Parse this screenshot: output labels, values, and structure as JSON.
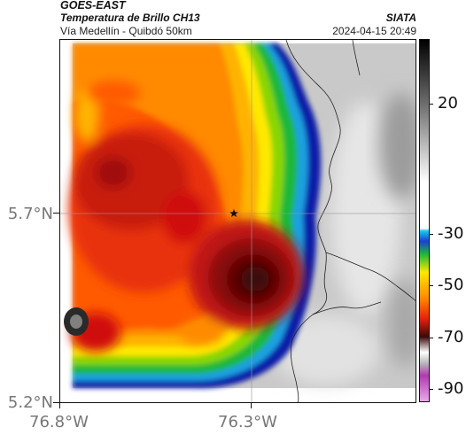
{
  "header": {
    "satellite": "GOES-EAST",
    "product": "Temperatura de Brillo CH13",
    "organization": "SIATA",
    "location": "Vía Medellín - Quibdó 50km",
    "timestamp": "2024-04-15 20:49"
  },
  "axes": {
    "latitude_labels": [
      "5.7°N",
      "5.2°N"
    ],
    "longitude_labels": [
      "76.8°W",
      "76.3°W"
    ]
  },
  "colorbar": {
    "tick_labels": [
      "20",
      "-30",
      "-50",
      "-70",
      "-90"
    ],
    "tick_values": [
      20,
      -30,
      -50,
      -70,
      -90
    ],
    "range": [
      -95,
      45
    ],
    "unit": ""
  },
  "map": {
    "marker_icon": "star-icon",
    "colors": {
      "coldest": "#3a0808",
      "red": "#d4160c",
      "orange": "#ff8a00",
      "yellow": "#ffe800",
      "green": "#1db83a",
      "blue": "#0a1aa8",
      "cloud_free": "#c8c8c8",
      "border": "#222222"
    }
  }
}
